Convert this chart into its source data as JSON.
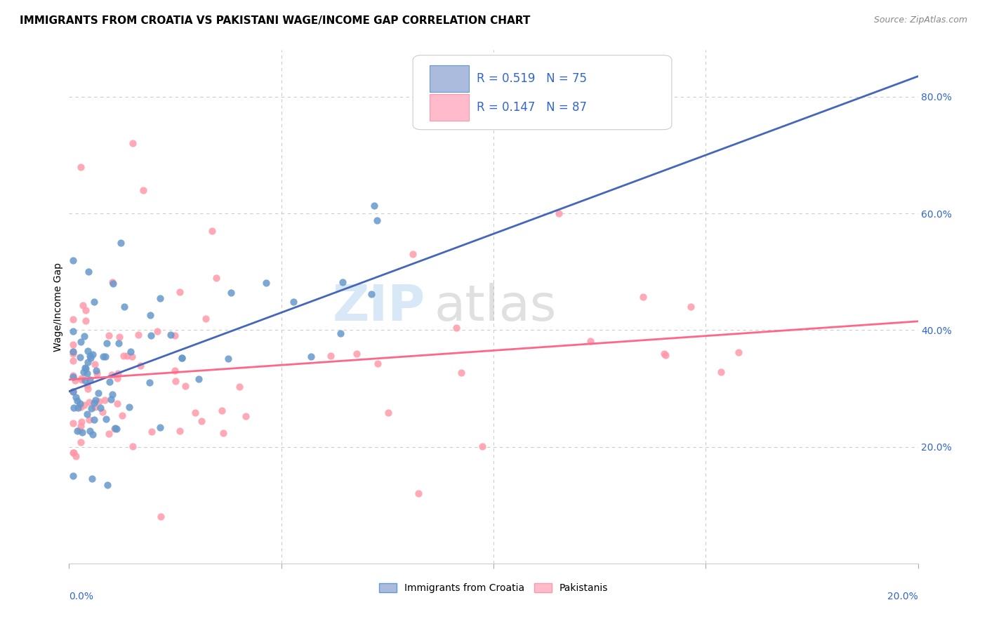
{
  "title": "IMMIGRANTS FROM CROATIA VS PAKISTANI WAGE/INCOME GAP CORRELATION CHART",
  "source": "Source: ZipAtlas.com",
  "ylabel": "Wage/Income Gap",
  "legend_label1": "Immigrants from Croatia",
  "legend_label2": "Pakistanis",
  "color_croatia": "#6699CC",
  "color_pakistan": "#FF99AA",
  "color_line_croatia": "#4466BB",
  "color_line_pakistan": "#FF6688",
  "color_croatia_patch": "#AABBDD",
  "color_pakistan_patch": "#FFBBCC",
  "background": "#FFFFFF",
  "grid_color": "#CCCCCC",
  "xlim": [
    0.0,
    0.2
  ],
  "ylim": [
    0.0,
    0.88
  ],
  "right_yticks": [
    0.2,
    0.4,
    0.6,
    0.8
  ],
  "right_yticklabels": [
    "20.0%",
    "40.0%",
    "60.0%",
    "80.0%"
  ],
  "croatia_line_x": [
    0.0,
    0.2
  ],
  "croatia_line_y": [
    0.295,
    0.835
  ],
  "pakistan_line_x": [
    0.0,
    0.2
  ],
  "pakistan_line_y": [
    0.315,
    0.415
  ],
  "title_fontsize": 11,
  "source_fontsize": 9,
  "axis_fontsize": 10,
  "watermark_fontsize": 52,
  "legend_r1": "R = 0.519",
  "legend_n1": "N = 75",
  "legend_r2": "R = 0.147",
  "legend_n2": "N = 87"
}
